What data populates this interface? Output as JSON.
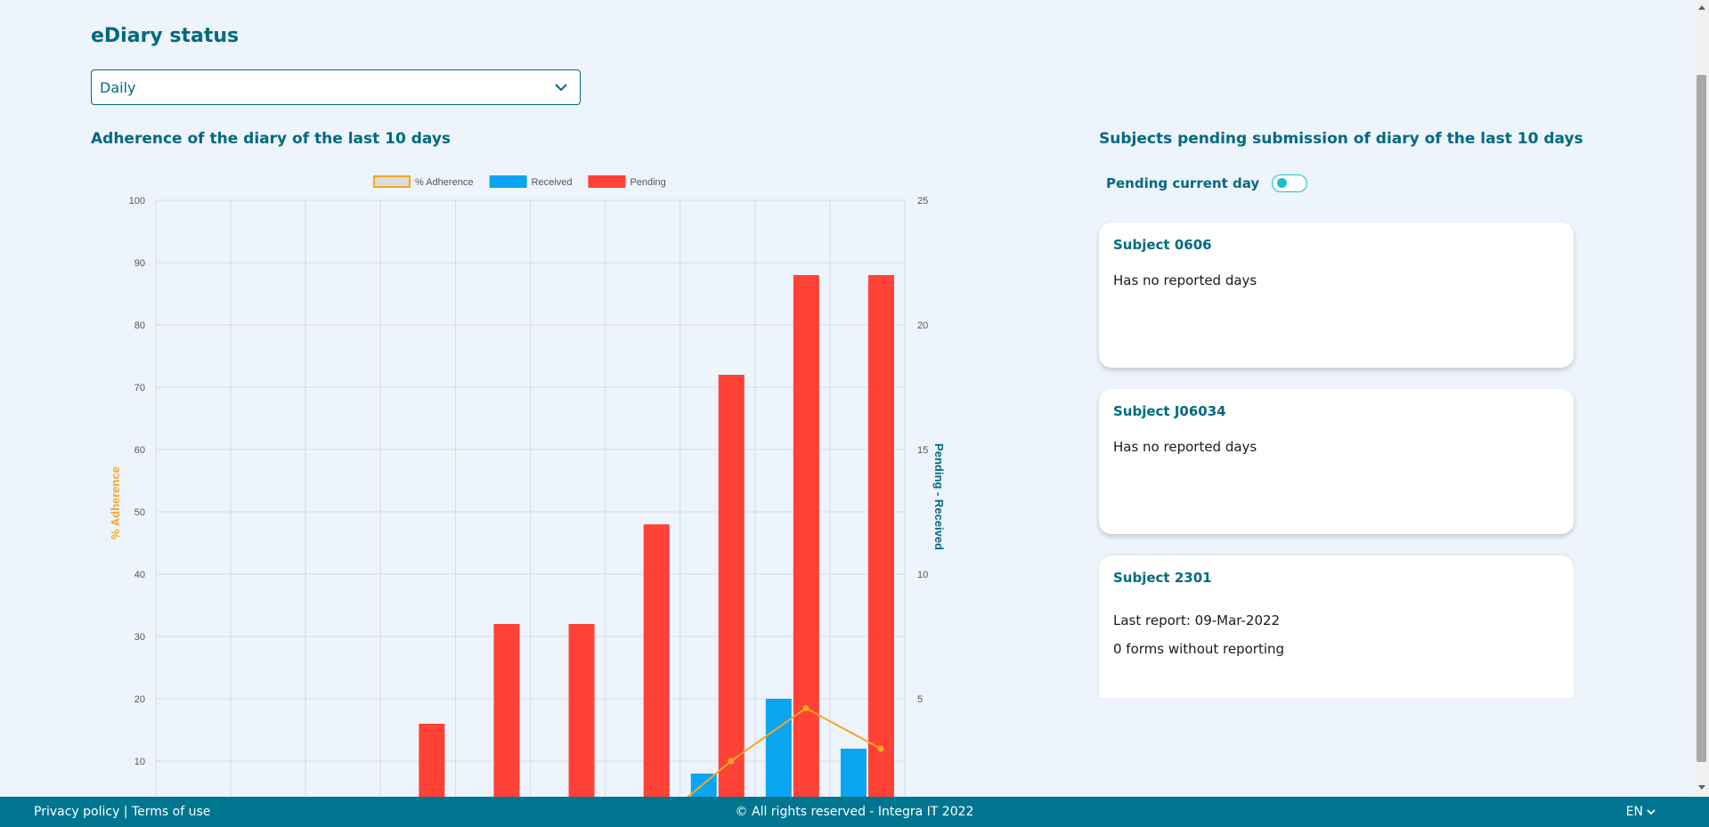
{
  "page": {
    "title": "eDiary status"
  },
  "period_select": {
    "value": "Daily"
  },
  "adherence": {
    "title": "Adherence of the diary of the last 10 days"
  },
  "pending": {
    "title": "Subjects pending submission of diary of the last 10 days",
    "toggle_label": "Pending current day",
    "toggle_on": false,
    "subjects": [
      {
        "title": "Subject 0606",
        "lines": [
          "Has no reported days"
        ]
      },
      {
        "title": "Subject J06034",
        "lines": [
          "Has no reported days"
        ]
      },
      {
        "title": "Subject 2301",
        "lines": [
          "Last report: 09-Mar-2022",
          "0 forms without reporting"
        ]
      }
    ]
  },
  "colors": {
    "accent": "#006a80",
    "footer": "#007590",
    "adherence": "#f5a623",
    "received": "#0aa5f0",
    "pending": "#ff4136",
    "toggle": "#1ac0c6"
  },
  "chart_data": {
    "type": "bar",
    "categories": [
      "",
      "",
      "",
      "",
      "",
      "",
      "",
      "",
      "",
      ""
    ],
    "legend": [
      "% Adherence",
      "Received",
      "Pending"
    ],
    "legend_position": "top",
    "grid": true,
    "ylabel_left": "% Adherence",
    "ylabel_right": "Pending - Received",
    "y_left": {
      "ticks": [
        "100",
        "90",
        "80",
        "70",
        "60",
        "50",
        "40",
        "30",
        "20",
        "10"
      ],
      "range": [
        0,
        100
      ]
    },
    "y_right": {
      "ticks": [
        "25",
        "20",
        "15",
        "10",
        "5"
      ],
      "range": [
        0,
        25
      ]
    },
    "series": [
      {
        "name": "Pending",
        "axis": "right",
        "type": "bar",
        "values": [
          0,
          0,
          0,
          4,
          8,
          8,
          12,
          18,
          22,
          22
        ]
      },
      {
        "name": "Received",
        "axis": "right",
        "type": "bar",
        "values": [
          0,
          0,
          0,
          0,
          0,
          0,
          0,
          2,
          5,
          3
        ]
      },
      {
        "name": "% Adherence",
        "axis": "left",
        "type": "line",
        "values": [
          null,
          null,
          null,
          null,
          null,
          null,
          0,
          10,
          18.5,
          12
        ]
      }
    ]
  },
  "footer": {
    "privacy": "Privacy policy",
    "separator": " | ",
    "terms": "Terms of use",
    "copyright": "© All rights reserved - Integra IT 2022",
    "language": "EN"
  }
}
